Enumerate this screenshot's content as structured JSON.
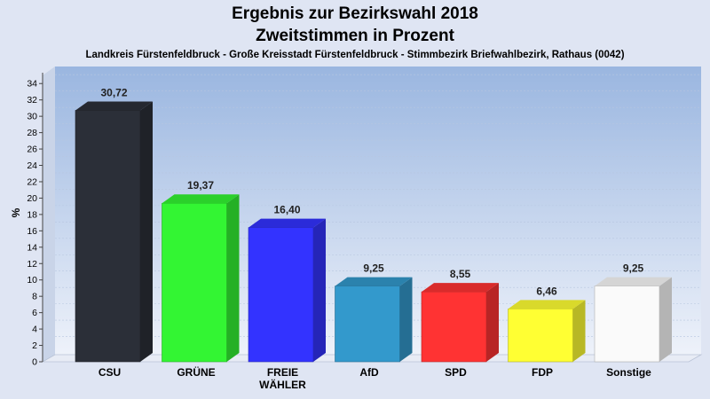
{
  "chart_data": {
    "type": "bar",
    "title": "Ergebnis zur Bezirkswahl 2018",
    "title_line2": "Zweitstimmen in Prozent",
    "subtitle": "Landkreis Fürstenfeldbruck - Große Kreisstadt Fürstenfeldbruck - Stimmbezirk Briefwahlbezirk, Rathaus (0042)",
    "ylabel": "%",
    "xlabel": "",
    "ylim": [
      0,
      35
    ],
    "yticks": [
      0,
      2,
      4,
      6,
      8,
      10,
      12,
      14,
      16,
      18,
      20,
      22,
      24,
      26,
      28,
      30,
      32,
      34
    ],
    "grid": true,
    "categories": [
      [
        "CSU"
      ],
      [
        "GRÜNE"
      ],
      [
        "FREIE",
        "WÄHLER"
      ],
      [
        "AfD"
      ],
      [
        "SPD"
      ],
      [
        "FDP"
      ],
      [
        "Sonstige"
      ]
    ],
    "values": [
      30.72,
      19.37,
      16.4,
      9.25,
      8.55,
      6.46,
      9.25
    ],
    "value_labels": [
      "30,72",
      "19,37",
      "16,40",
      "9,25",
      "8,55",
      "6,46",
      "9,25"
    ],
    "colors": [
      "#2b2f38",
      "#33f533",
      "#3333ff",
      "#3399cc",
      "#ff3333",
      "#ffff33",
      "#fafafa"
    ]
  }
}
